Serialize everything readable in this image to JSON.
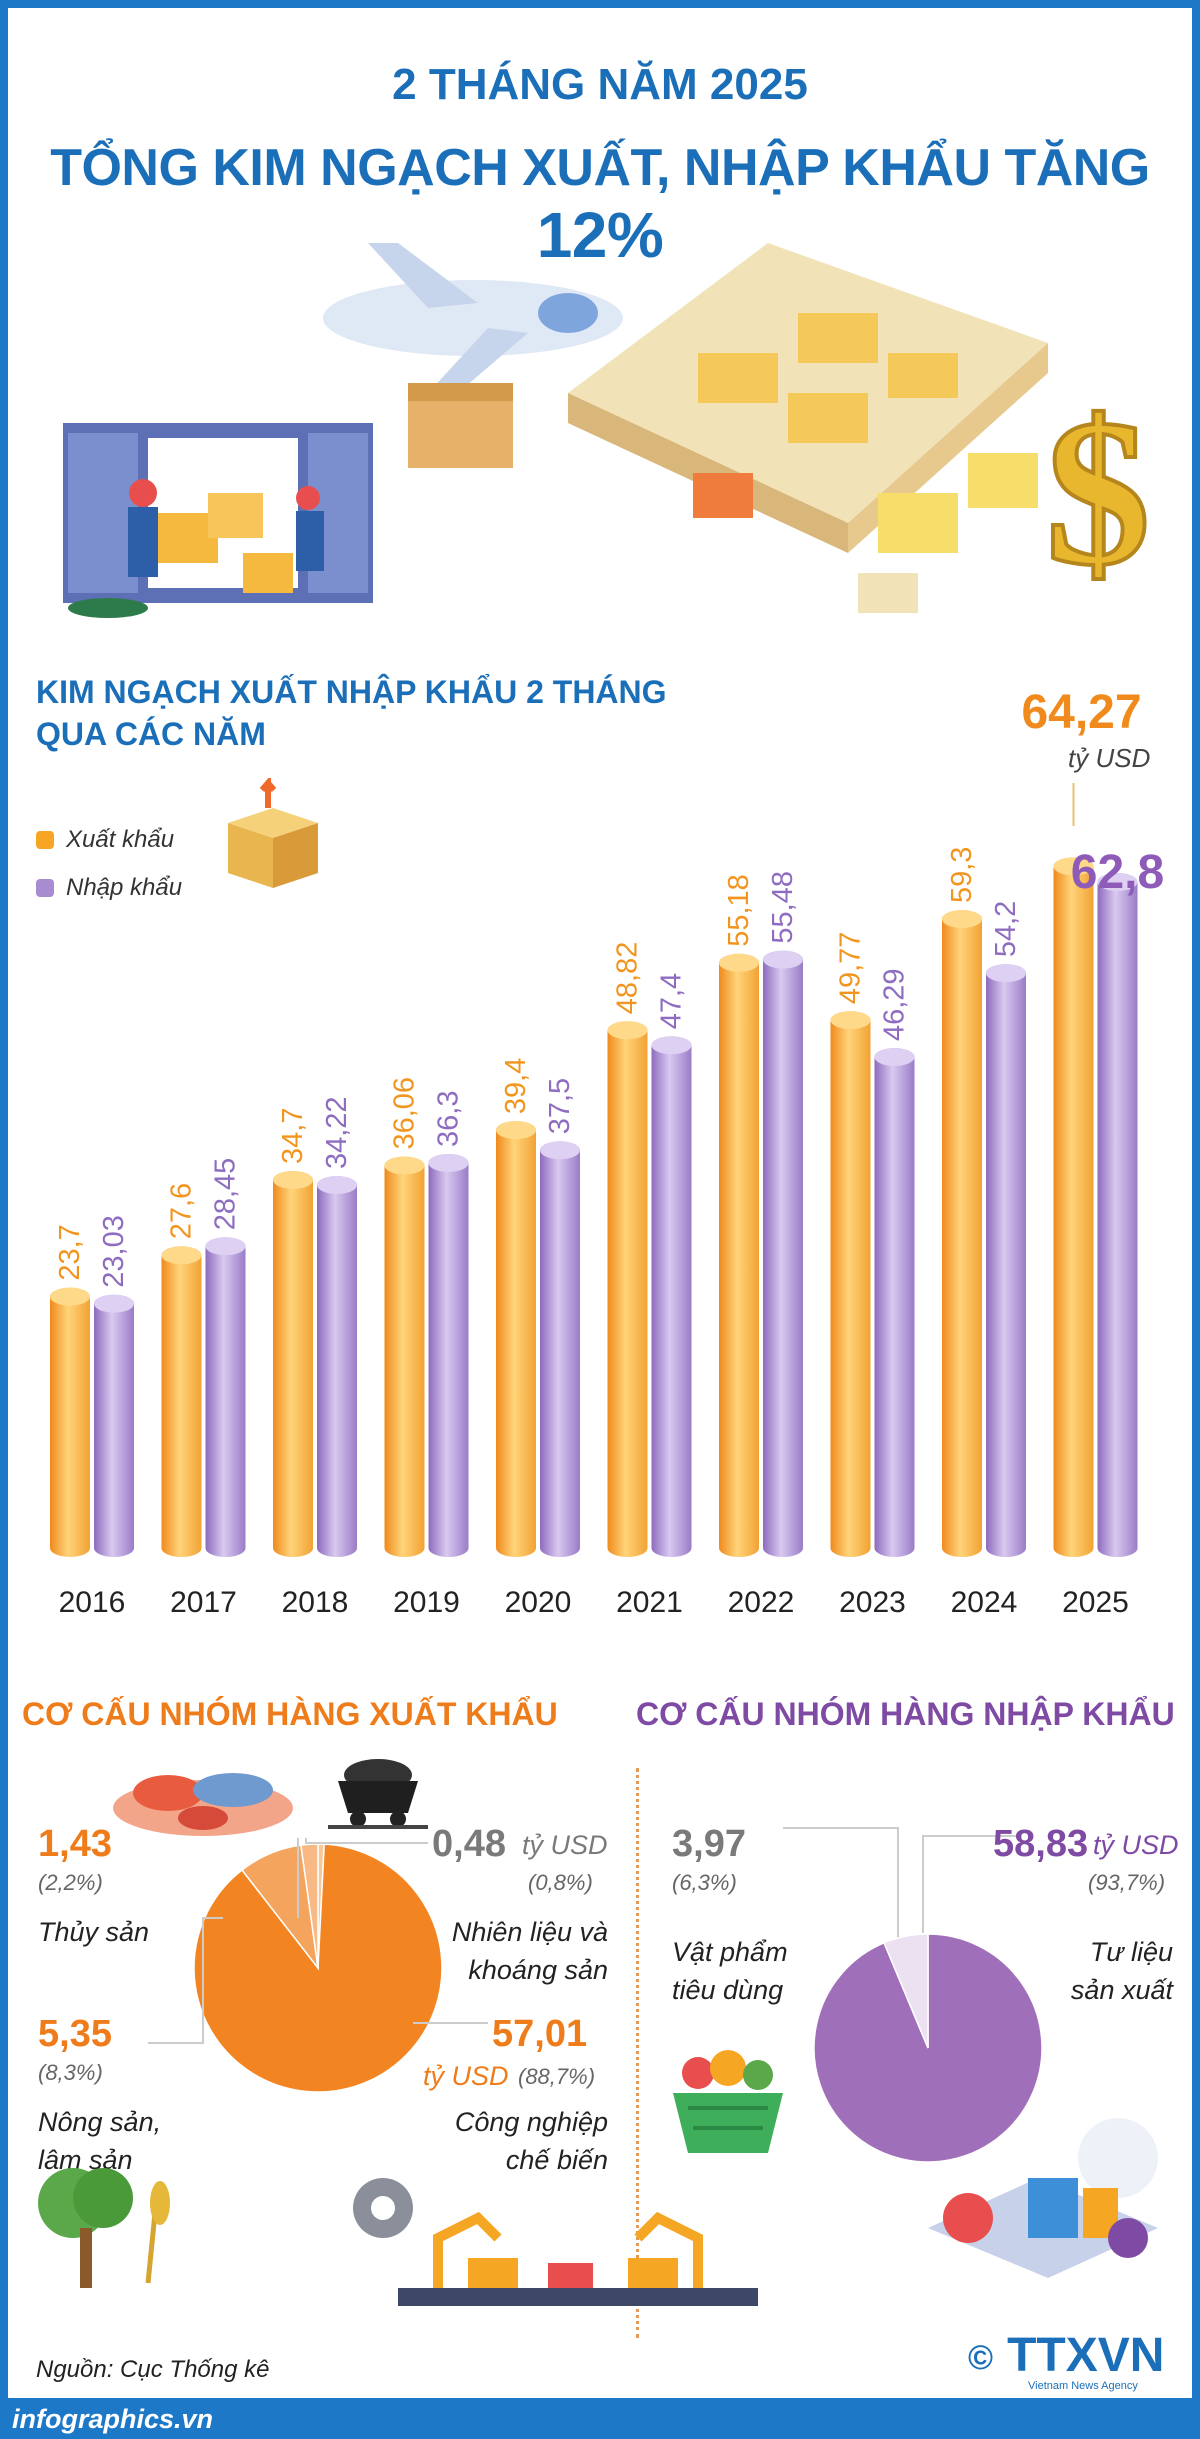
{
  "header": {
    "title_line1": "2 THÁNG NĂM 2025",
    "title_line2_main": "TỔNG KIM NGẠCH XUẤT, NHẬP KHẨU TĂNG ",
    "title_line2_pct": "12%"
  },
  "chart_data": {
    "type": "bar",
    "title": "KIM NGẠCH XUẤT NHẬP KHẨU 2 THÁNG QUA CÁC NĂM",
    "title_line1": "KIM NGẠCH XUẤT NHẬP KHẨU 2 THÁNG",
    "title_line2": "QUA CÁC NĂM",
    "unit": "tỷ USD",
    "categories": [
      "2016",
      "2017",
      "2018",
      "2019",
      "2020",
      "2021",
      "2022",
      "2023",
      "2024",
      "2025"
    ],
    "series": [
      {
        "name": "Xuất khẩu",
        "color": "#f6a623",
        "values": [
          23.7,
          27.6,
          34.7,
          36.06,
          39.4,
          48.82,
          55.18,
          49.77,
          59.3,
          64.27
        ],
        "labels": [
          "23,7",
          "27,6",
          "34,7",
          "36,06",
          "39,4",
          "48,82",
          "55,18",
          "49,77",
          "59,3",
          "64,27"
        ]
      },
      {
        "name": "Nhập khẩu",
        "color": "#a98bd0",
        "values": [
          23.03,
          28.45,
          34.22,
          36.3,
          37.5,
          47.4,
          55.48,
          46.29,
          54.2,
          62.8
        ],
        "labels": [
          "23,03",
          "28,45",
          "34,22",
          "36,3",
          "37,5",
          "47,4",
          "55,48",
          "46,29",
          "54,2",
          "62,8"
        ]
      }
    ],
    "ylim": [
      0,
      66
    ],
    "legend_position": "top-left",
    "grid": false
  },
  "export_structure": {
    "title": "CƠ CẤU NHÓM HÀNG XUẤT KHẨU",
    "color_main": "#f28521",
    "items": [
      {
        "name_line1": "Thủy sản",
        "name_line2": "",
        "value": "1,43",
        "pct": "(2,2%)",
        "pct_value": 2.2
      },
      {
        "name_line1": "Nhiên liệu và",
        "name_line2": "khoáng sản",
        "value": "0,48",
        "pct": "(0,8%)",
        "pct_value": 0.8,
        "unit": "tỷ USD"
      },
      {
        "name_line1": "Nông sản,",
        "name_line2": "lâm sản",
        "value": "5,35",
        "pct": "(8,3%)",
        "pct_value": 8.3
      },
      {
        "name_line1": "Công nghiệp",
        "name_line2": "chế biến",
        "value": "57,01",
        "pct": "(88,7%)",
        "pct_value": 88.7,
        "unit": "tỷ USD"
      }
    ]
  },
  "import_structure": {
    "title": "CƠ CẤU NHÓM HÀNG NHẬP KHẨU",
    "color_main": "#9f6dbb",
    "items": [
      {
        "name_line1": "Vật phẩm",
        "name_line2": "tiêu dùng",
        "value": "3,97",
        "pct": "(6,3%)",
        "pct_value": 6.3
      },
      {
        "name_line1": "Tư liệu",
        "name_line2": "sản xuất",
        "value": "58,83",
        "pct": "(93,7%)",
        "pct_value": 93.7,
        "unit": "tỷ USD"
      }
    ]
  },
  "source": "Nguồn: Cục Thống kê",
  "footer": {
    "site": "infographics.vn",
    "logo": "TTXVN",
    "logo_sub": "Vietnam News Agency",
    "copyright": "©"
  }
}
